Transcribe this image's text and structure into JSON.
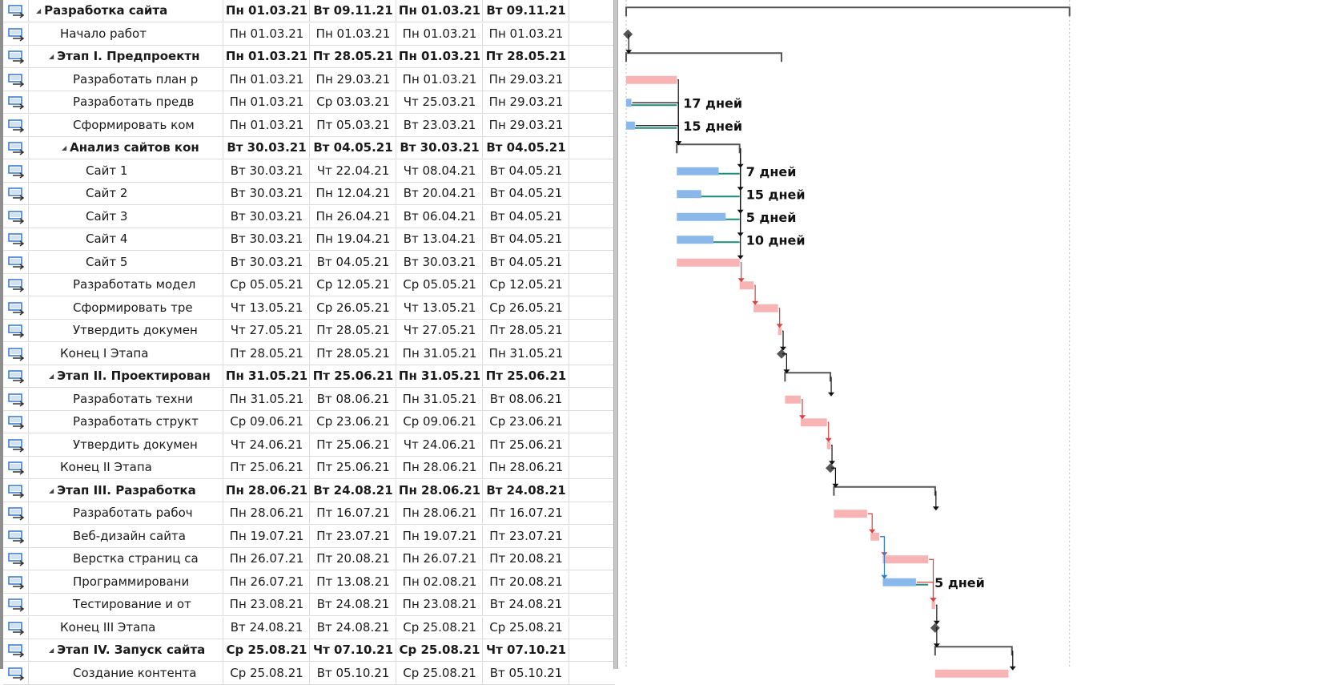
{
  "colors": {
    "critical_bar": "#f8b4b4",
    "critical_link": "#d94040",
    "normal_bar": "#8ab8ea",
    "normal_link": "#2f7fd0",
    "slack_line": "#1a8a7a",
    "summary_bar": "#555555",
    "milestone": "#555555",
    "grid": "#dcdcdc",
    "indicator_icon": "#3b7dd8"
  },
  "tasks": [
    {
      "name": "Разработка сайта",
      "level": 0,
      "summary": true,
      "start": "Пн 01.03.21",
      "finish": "Вт 09.11.21",
      "bl_start": "Пн 01.03.21",
      "bl_finish": "Вт 09.11.21"
    },
    {
      "name": "Начало работ",
      "level": 1,
      "summary": false,
      "start": "Пн 01.03.21",
      "finish": "Пн 01.03.21",
      "bl_start": "Пн 01.03.21",
      "bl_finish": "Пн 01.03.21"
    },
    {
      "name": "Этап I. Предпроектн",
      "level": 1,
      "summary": true,
      "start": "Пн 01.03.21",
      "finish": "Пт 28.05.21",
      "bl_start": "Пн 01.03.21",
      "bl_finish": "Пт 28.05.21"
    },
    {
      "name": "Разработать план р",
      "level": 2,
      "summary": false,
      "start": "Пн 01.03.21",
      "finish": "Пн 29.03.21",
      "bl_start": "Пн 01.03.21",
      "bl_finish": "Пн 29.03.21"
    },
    {
      "name": "Разработать предв",
      "level": 2,
      "summary": false,
      "start": "Пн 01.03.21",
      "finish": "Ср 03.03.21",
      "bl_start": "Чт 25.03.21",
      "bl_finish": "Пн 29.03.21"
    },
    {
      "name": "Сформировать ком",
      "level": 2,
      "summary": false,
      "start": "Пн 01.03.21",
      "finish": "Пт 05.03.21",
      "bl_start": "Вт 23.03.21",
      "bl_finish": "Пн 29.03.21"
    },
    {
      "name": "Анализ сайтов кон",
      "level": 2,
      "summary": true,
      "start": "Вт 30.03.21",
      "finish": "Вт 04.05.21",
      "bl_start": "Вт 30.03.21",
      "bl_finish": "Вт 04.05.21"
    },
    {
      "name": "Сайт 1",
      "level": 3,
      "summary": false,
      "start": "Вт 30.03.21",
      "finish": "Чт 22.04.21",
      "bl_start": "Чт 08.04.21",
      "bl_finish": "Вт 04.05.21"
    },
    {
      "name": "Сайт 2",
      "level": 3,
      "summary": false,
      "start": "Вт 30.03.21",
      "finish": "Пн 12.04.21",
      "bl_start": "Вт 20.04.21",
      "bl_finish": "Вт 04.05.21"
    },
    {
      "name": "Сайт 3",
      "level": 3,
      "summary": false,
      "start": "Вт 30.03.21",
      "finish": "Пн 26.04.21",
      "bl_start": "Вт 06.04.21",
      "bl_finish": "Вт 04.05.21"
    },
    {
      "name": "Сайт 4",
      "level": 3,
      "summary": false,
      "start": "Вт 30.03.21",
      "finish": "Пн 19.04.21",
      "bl_start": "Вт 13.04.21",
      "bl_finish": "Вт 04.05.21"
    },
    {
      "name": "Сайт 5",
      "level": 3,
      "summary": false,
      "start": "Вт 30.03.21",
      "finish": "Вт 04.05.21",
      "bl_start": "Вт 30.03.21",
      "bl_finish": "Вт 04.05.21"
    },
    {
      "name": "Разработать модел",
      "level": 2,
      "summary": false,
      "start": "Ср 05.05.21",
      "finish": "Ср 12.05.21",
      "bl_start": "Ср 05.05.21",
      "bl_finish": "Ср 12.05.21"
    },
    {
      "name": "Сформировать тре",
      "level": 2,
      "summary": false,
      "start": "Чт 13.05.21",
      "finish": "Ср 26.05.21",
      "bl_start": "Чт 13.05.21",
      "bl_finish": "Ср 26.05.21"
    },
    {
      "name": "Утвердить докумен",
      "level": 2,
      "summary": false,
      "start": "Чт 27.05.21",
      "finish": "Пт 28.05.21",
      "bl_start": "Чт 27.05.21",
      "bl_finish": "Пт 28.05.21"
    },
    {
      "name": "Конец I Этапа",
      "level": 1,
      "summary": false,
      "start": "Пт 28.05.21",
      "finish": "Пт 28.05.21",
      "bl_start": "Пн 31.05.21",
      "bl_finish": "Пн 31.05.21"
    },
    {
      "name": "Этап II. Проектирован",
      "level": 1,
      "summary": true,
      "start": "Пн 31.05.21",
      "finish": "Пт 25.06.21",
      "bl_start": "Пн 31.05.21",
      "bl_finish": "Пт 25.06.21"
    },
    {
      "name": "Разработать техни",
      "level": 2,
      "summary": false,
      "start": "Пн 31.05.21",
      "finish": "Вт 08.06.21",
      "bl_start": "Пн 31.05.21",
      "bl_finish": "Вт 08.06.21"
    },
    {
      "name": "Разработать структ",
      "level": 2,
      "summary": false,
      "start": "Ср 09.06.21",
      "finish": "Ср 23.06.21",
      "bl_start": "Ср 09.06.21",
      "bl_finish": "Ср 23.06.21"
    },
    {
      "name": "Утвердить докумен",
      "level": 2,
      "summary": false,
      "start": "Чт 24.06.21",
      "finish": "Пт 25.06.21",
      "bl_start": "Чт 24.06.21",
      "bl_finish": "Пт 25.06.21"
    },
    {
      "name": "Конец II Этапа",
      "level": 1,
      "summary": false,
      "start": "Пт 25.06.21",
      "finish": "Пт 25.06.21",
      "bl_start": "Пн 28.06.21",
      "bl_finish": "Пн 28.06.21"
    },
    {
      "name": "Этап III. Разработка",
      "level": 1,
      "summary": true,
      "start": "Пн 28.06.21",
      "finish": "Вт 24.08.21",
      "bl_start": "Пн 28.06.21",
      "bl_finish": "Вт 24.08.21"
    },
    {
      "name": "Разработать рабоч",
      "level": 2,
      "summary": false,
      "start": "Пн 28.06.21",
      "finish": "Пт 16.07.21",
      "bl_start": "Пн 28.06.21",
      "bl_finish": "Пт 16.07.21"
    },
    {
      "name": "Веб-дизайн сайта",
      "level": 2,
      "summary": false,
      "start": "Пн 19.07.21",
      "finish": "Пт 23.07.21",
      "bl_start": "Пн 19.07.21",
      "bl_finish": "Пт 23.07.21"
    },
    {
      "name": "Верстка страниц са",
      "level": 2,
      "summary": false,
      "start": "Пн 26.07.21",
      "finish": "Пт 20.08.21",
      "bl_start": "Пн 26.07.21",
      "bl_finish": "Пт 20.08.21"
    },
    {
      "name": "Программировани",
      "level": 2,
      "summary": false,
      "start": "Пн 26.07.21",
      "finish": "Пт 13.08.21",
      "bl_start": "Пн 02.08.21",
      "bl_finish": "Пт 20.08.21"
    },
    {
      "name": "Тестирование и от",
      "level": 2,
      "summary": false,
      "start": "Пн 23.08.21",
      "finish": "Вт 24.08.21",
      "bl_start": "Пн 23.08.21",
      "bl_finish": "Вт 24.08.21"
    },
    {
      "name": "Конец III Этапа",
      "level": 1,
      "summary": false,
      "start": "Вт 24.08.21",
      "finish": "Вт 24.08.21",
      "bl_start": "Ср 25.08.21",
      "bl_finish": "Ср 25.08.21"
    },
    {
      "name": "Этап IV. Запуск сайта",
      "level": 1,
      "summary": true,
      "start": "Ср 25.08.21",
      "finish": "Чт 07.10.21",
      "bl_start": "Ср 25.08.21",
      "bl_finish": "Чт 07.10.21"
    },
    {
      "name": "Создание контента",
      "level": 2,
      "summary": false,
      "start": "Ср 25.08.21",
      "finish": "Вт 05.10.21",
      "bl_start": "Ср 25.08.21",
      "bl_finish": "Вт 05.10.21"
    }
  ],
  "gantt": {
    "slack_labels": [
      {
        "row": 4,
        "text": "17 дней"
      },
      {
        "row": 5,
        "text": "15 дней"
      },
      {
        "row": 7,
        "text": "7 дней"
      },
      {
        "row": 8,
        "text": "15 дней"
      },
      {
        "row": 9,
        "text": "5 дней"
      },
      {
        "row": 10,
        "text": "10 дней"
      },
      {
        "row": 25,
        "text": "5 дней"
      }
    ]
  }
}
